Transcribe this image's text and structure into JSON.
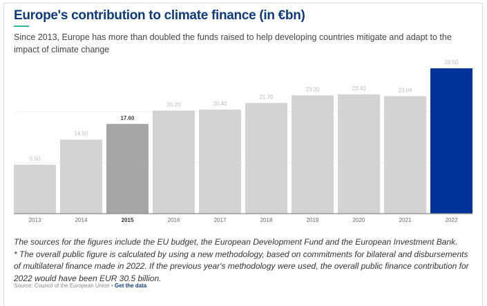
{
  "title": "Europe's contribution to climate finance (in €bn)",
  "subtitle": "Since 2013, Europe has more than doubled the funds raised to help developing countries mitigate and adapt to the impact of climate change",
  "notes": [
    "The sources for the figures include the EU budget, the European Development Fund and the European Investment Bank.",
    "* The overall public figure is calculated by using a new methodology, based on commitments for bilateral and disbursements of multilateral finance made in 2022. If the previous year's methodology were used, the overall public finance contribution for 2022 would have been EUR 30.5 billion."
  ],
  "source": {
    "text": "Source: Council of the European Union",
    "separator": " • ",
    "link": "Get the data"
  },
  "chart_data": {
    "type": "bar",
    "categories": [
      "2013",
      "2014",
      "2015",
      "2016",
      "2017",
      "2018",
      "2019",
      "2020",
      "2021",
      "2022"
    ],
    "values": [
      9.6,
      14.5,
      17.6,
      20.2,
      20.4,
      21.7,
      23.2,
      23.4,
      23.04,
      28.5
    ],
    "value_labels": [
      "9.60",
      "14.50",
      "17.60",
      "20.20",
      "20.40",
      "21.70",
      "23.20",
      "23.40",
      "23.04",
      "28.50"
    ],
    "highlighted": {
      "2015": "#a6a6a6",
      "2022": "#003399"
    },
    "default_color": "#d3d3d3",
    "ylim": [
      0,
      30
    ],
    "gridlines": [
      10,
      20
    ],
    "grid": true,
    "legend": "none"
  }
}
